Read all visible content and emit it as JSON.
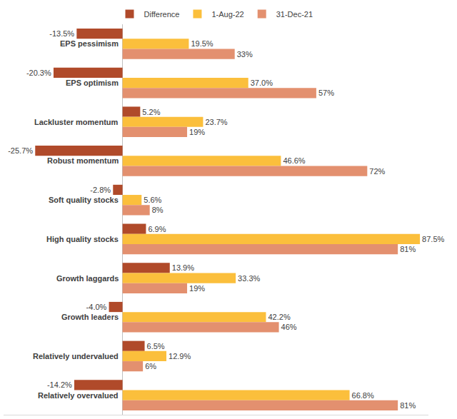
{
  "chart_data": {
    "type": "bar",
    "orientation": "horizontal",
    "categories": [
      "EPS pessimism",
      "EPS optimism",
      "Lackluster momentum",
      "Robust momentum",
      "Soft quality stocks",
      "High quality stocks",
      "Growth laggards",
      "Growth leaders",
      "Relatively undervalued",
      "Relatively overvalued"
    ],
    "series": [
      {
        "name": "Difference",
        "color": "#b04a2a",
        "values": [
          -13.5,
          -20.3,
          5.2,
          -25.7,
          -2.8,
          6.9,
          13.9,
          -4.0,
          6.5,
          -14.2
        ],
        "value_labels": [
          "-13.5%",
          "-20.3%",
          "5.2%",
          "-25.7%",
          "-2.8%",
          "6.9%",
          "13.9%",
          "-4.0%",
          "6.5%",
          "-14.2%"
        ]
      },
      {
        "name": "1-Aug-22",
        "color": "#fbbf3c",
        "values": [
          19.5,
          37.0,
          23.7,
          46.6,
          5.6,
          87.5,
          33.3,
          42.2,
          12.9,
          66.8
        ],
        "value_labels": [
          "19.5%",
          "37.0%",
          "23.7%",
          "46.6%",
          "5.6%",
          "87.5%",
          "33.3%",
          "42.2%",
          "12.9%",
          "66.8%"
        ]
      },
      {
        "name": "31-Dec-21",
        "color": "#e3906f",
        "values": [
          33,
          57,
          19,
          72,
          8,
          81,
          19,
          46,
          6,
          81
        ],
        "value_labels": [
          "33%",
          "57%",
          "19%",
          "72%",
          "8%",
          "81%",
          "19%",
          "46%",
          "6%",
          "81%"
        ]
      }
    ],
    "xlim": [
      -35,
      90
    ],
    "grid": false,
    "legend": "top",
    "data_labels": true,
    "tick_labels": false
  }
}
